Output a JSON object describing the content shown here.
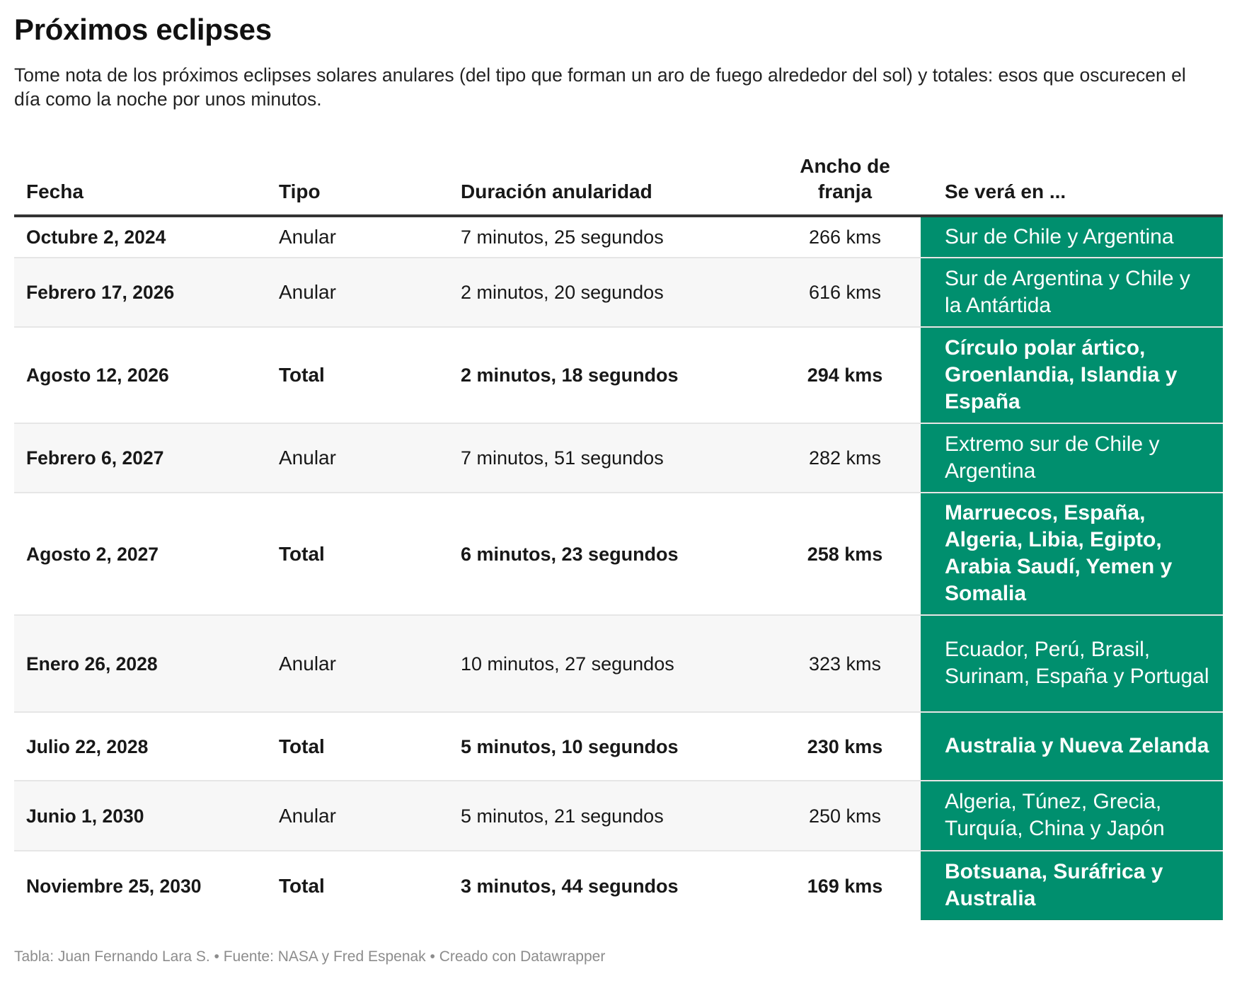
{
  "title": "Próximos eclipses",
  "subtitle": "Tome nota de los próximos eclipses solares anulares (del tipo que forman un aro de fuego alrededor del sol) y totales: esos que oscurecen el día como la noche por unos minutos.",
  "colors": {
    "highlight_column": "#008f6e",
    "highlight_text": "#ffffff",
    "alt_row": "#f7f7f7",
    "header_rule": "#333333"
  },
  "table": {
    "headers": {
      "fecha": "Fecha",
      "tipo": "Tipo",
      "duracion": "Duración anularidad",
      "ancho_line1": "Ancho de",
      "ancho_line2": "franja",
      "lugar": "Se verá en ..."
    },
    "rows": [
      {
        "fecha": "Octubre 2, 2024",
        "tipo": "Anular",
        "duracion": "7 minutos, 25 segundos",
        "ancho": "266 kms",
        "lugar": "Sur de Chile y Argentina",
        "total": false
      },
      {
        "fecha": "Febrero 17, 2026",
        "tipo": "Anular",
        "duracion": "2 minutos, 20 segundos",
        "ancho": "616 kms",
        "lugar": "Sur de Argentina y Chile y la Antártida",
        "total": false
      },
      {
        "fecha": "Agosto 12, 2026",
        "tipo": "Total",
        "duracion": "2 minutos, 18 segundos",
        "ancho": "294 kms",
        "lugar": "Círculo polar ártico, Groenlandia, Islandia y España",
        "total": true
      },
      {
        "fecha": "Febrero 6, 2027",
        "tipo": "Anular",
        "duracion": "7 minutos, 51 segundos",
        "ancho": "282 kms",
        "lugar": "Extremo sur de Chile y Argentina",
        "total": false
      },
      {
        "fecha": "Agosto 2, 2027",
        "tipo": "Total",
        "duracion": "6 minutos, 23 segundos",
        "ancho": "258 kms",
        "lugar": "Marruecos, España, Algeria, Libia, Egipto, Arabia Saudí, Yemen y Somalia",
        "total": true
      },
      {
        "fecha": "Enero 26, 2028",
        "tipo": "Anular",
        "duracion": "10 minutos, 27 segundos",
        "ancho": "323 kms",
        "lugar": "Ecuador, Perú, Brasil, Surinam, España y Portugal",
        "total": false
      },
      {
        "fecha": "Julio 22, 2028",
        "tipo": "Total",
        "duracion": "5 minutos, 10 segundos",
        "ancho": "230 kms",
        "lugar": "Australia y Nueva Zelanda",
        "total": true
      },
      {
        "fecha": "Junio 1, 2030",
        "tipo": "Anular",
        "duracion": "5 minutos, 21 segundos",
        "ancho": "250 kms",
        "lugar": "Algeria, Túnez, Grecia, Turquía, China y Japón",
        "total": false
      },
      {
        "fecha": "Noviembre 25, 2030",
        "tipo": "Total",
        "duracion": "3 minutos, 44 segundos",
        "ancho": "169 kms",
        "lugar": "Botsuana, Suráfrica y Australia",
        "total": true
      }
    ]
  },
  "footer": "Tabla: Juan Fernando Lara S. • Fuente: NASA y Fred Espenak • Creado con Datawrapper"
}
